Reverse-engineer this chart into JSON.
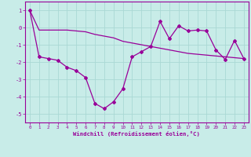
{
  "xlabel": "Windchill (Refroidissement éolien,°C)",
  "background_color": "#c8ece8",
  "grid_color": "#aad8d4",
  "line_color": "#990099",
  "x_values": [
    0,
    1,
    2,
    3,
    4,
    5,
    6,
    7,
    8,
    9,
    10,
    11,
    12,
    13,
    14,
    15,
    16,
    17,
    18,
    19,
    20,
    21,
    22,
    23
  ],
  "curve1": [
    1.0,
    -1.7,
    -1.8,
    -1.9,
    -2.3,
    -2.5,
    -2.9,
    -4.4,
    -4.7,
    -4.3,
    -3.55,
    -1.7,
    -1.4,
    -1.1,
    0.35,
    -0.65,
    0.1,
    -0.2,
    -0.15,
    -0.2,
    -1.3,
    -1.85,
    -0.75,
    -1.8
  ],
  "curve2": [
    1.0,
    -0.15,
    -0.15,
    -0.15,
    -0.15,
    -0.2,
    -0.25,
    -0.4,
    -0.5,
    -0.6,
    -0.8,
    -0.9,
    -1.0,
    -1.1,
    -1.2,
    -1.3,
    -1.4,
    -1.5,
    -1.55,
    -1.6,
    -1.65,
    -1.7,
    -1.75,
    -1.8
  ],
  "ylim": [
    -5.5,
    1.5
  ],
  "xlim": [
    -0.5,
    23.5
  ],
  "yticks": [
    1,
    0,
    -1,
    -2,
    -3,
    -4,
    -5
  ],
  "xticks": [
    0,
    1,
    2,
    3,
    4,
    5,
    6,
    7,
    8,
    9,
    10,
    11,
    12,
    13,
    14,
    15,
    16,
    17,
    18,
    19,
    20,
    21,
    22,
    23
  ]
}
